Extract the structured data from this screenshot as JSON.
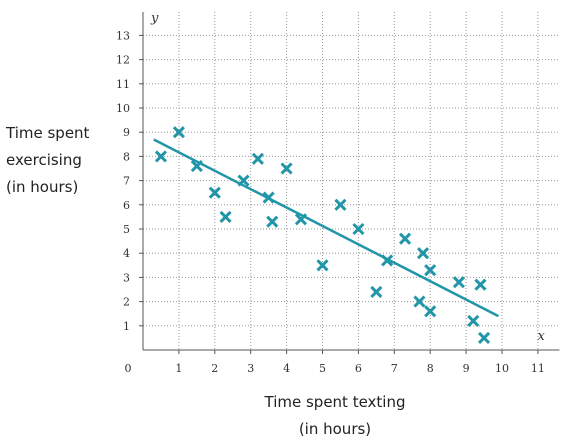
{
  "chart_data": {
    "type": "scatter",
    "xlabel_lines": [
      "Time spent texting",
      "(in hours)"
    ],
    "ylabel_lines": [
      "Time spent",
      "exercising",
      "(in hours)"
    ],
    "x_axis_var": "x",
    "y_axis_var": "y",
    "origin_label": "0",
    "xlim": [
      0,
      11.6
    ],
    "ylim": [
      0,
      14
    ],
    "grid": true,
    "x_ticks": [
      1,
      2,
      3,
      4,
      5,
      6,
      7,
      8,
      9,
      10,
      11
    ],
    "y_ticks": [
      1,
      2,
      3,
      4,
      5,
      6,
      7,
      8,
      9,
      10,
      11,
      12,
      13
    ],
    "x_tick_labels": [
      "1",
      "2",
      "3",
      "4",
      "5",
      "6",
      "7",
      "8",
      "9",
      "10",
      "11"
    ],
    "y_tick_labels": [
      "1",
      "2",
      "3",
      "4",
      "5",
      "6",
      "7",
      "8",
      "9",
      "10",
      "11",
      "12",
      "13"
    ],
    "marker": "x",
    "marker_color": "#2196a8",
    "points": [
      {
        "x": 0.5,
        "y": 8.0
      },
      {
        "x": 1.0,
        "y": 9.0
      },
      {
        "x": 1.5,
        "y": 7.6
      },
      {
        "x": 2.0,
        "y": 6.5
      },
      {
        "x": 2.3,
        "y": 5.5
      },
      {
        "x": 2.8,
        "y": 7.0
      },
      {
        "x": 3.2,
        "y": 7.9
      },
      {
        "x": 3.5,
        "y": 6.3
      },
      {
        "x": 3.6,
        "y": 5.3
      },
      {
        "x": 4.0,
        "y": 7.5
      },
      {
        "x": 4.4,
        "y": 5.4
      },
      {
        "x": 5.0,
        "y": 3.5
      },
      {
        "x": 5.5,
        "y": 6.0
      },
      {
        "x": 6.0,
        "y": 5.0
      },
      {
        "x": 6.5,
        "y": 2.4
      },
      {
        "x": 6.8,
        "y": 3.7
      },
      {
        "x": 7.3,
        "y": 4.6
      },
      {
        "x": 7.7,
        "y": 2.0
      },
      {
        "x": 7.8,
        "y": 4.0
      },
      {
        "x": 8.0,
        "y": 1.6
      },
      {
        "x": 8.0,
        "y": 3.3
      },
      {
        "x": 8.8,
        "y": 2.8
      },
      {
        "x": 9.2,
        "y": 1.2
      },
      {
        "x": 9.4,
        "y": 2.7
      },
      {
        "x": 9.5,
        "y": 0.5
      }
    ],
    "trend_line": {
      "x1": 0.3,
      "y1": 8.7,
      "x2": 9.9,
      "y2": 1.4,
      "color": "#2196a8"
    }
  }
}
